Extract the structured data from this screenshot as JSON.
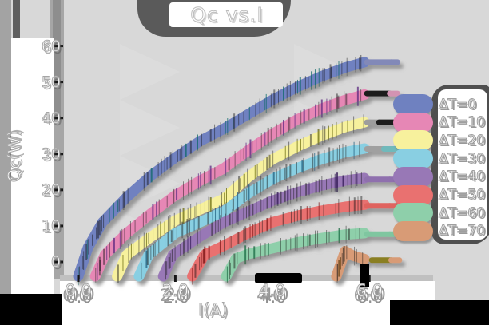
{
  "chart_data": {
    "type": "line",
    "title": "Qc vs.I",
    "xlabel": "I(A)",
    "ylabel": "Qc(W)",
    "xlim": [
      -0.4,
      6.8
    ],
    "ylim": [
      -5,
      62
    ],
    "grid": false,
    "legend_position": "right",
    "x_ticks": [
      0.0,
      2.0,
      4.0,
      6.0
    ],
    "x_tick_labels": [
      "0.0",
      "2.0",
      "4.0",
      "6.0"
    ],
    "y_ticks": [
      0,
      10,
      20,
      30,
      40,
      50,
      60
    ],
    "y_tick_labels": [
      "0",
      "10",
      "20",
      "30",
      "40",
      "50",
      "60"
    ],
    "series": [
      {
        "name": "ΔT=0",
        "color": "#6f81c0",
        "accent": "#106868",
        "points": [
          [
            0,
            -4
          ],
          [
            0.2,
            4
          ],
          [
            0.5,
            11
          ],
          [
            1,
            18
          ],
          [
            1.5,
            24
          ],
          [
            2,
            29
          ],
          [
            2.5,
            33.5
          ],
          [
            3,
            37
          ],
          [
            3.5,
            41
          ],
          [
            4,
            45
          ],
          [
            4.5,
            48.5
          ],
          [
            5,
            51.5
          ],
          [
            5.5,
            54
          ],
          [
            5.9,
            55.5
          ]
        ],
        "end_cap": {
          "value": 55.5,
          "start": 5.95,
          "mid": 6.45,
          "end": 6.58,
          "color": "#8289b8",
          "tip_color": "#8289b8"
        }
      },
      {
        "name": "ΔT=10",
        "color": "#e687b5",
        "accent": "#5c2a80",
        "points": [
          [
            0.35,
            -4
          ],
          [
            0.55,
            2
          ],
          [
            1,
            8
          ],
          [
            1.5,
            13.5
          ],
          [
            2,
            18.5
          ],
          [
            2.5,
            22.5
          ],
          [
            3,
            26
          ],
          [
            3.5,
            31
          ],
          [
            4,
            35.5
          ],
          [
            4.5,
            39.5
          ],
          [
            5,
            42.5
          ],
          [
            5.5,
            45
          ],
          [
            5.9,
            46.5
          ]
        ],
        "end_cap": {
          "value": 46.8,
          "start": 5.95,
          "mid": 6.42,
          "end": 6.58,
          "color": "#1a1a1a",
          "tip_color": "#d393b2"
        }
      },
      {
        "name": "ΔT=20",
        "color": "#f7f19d",
        "accent": "#6b6b10",
        "points": [
          [
            0.8,
            -4
          ],
          [
            1,
            2
          ],
          [
            1.5,
            7
          ],
          [
            2,
            11.5
          ],
          [
            2.5,
            14.5
          ],
          [
            3,
            17.5
          ],
          [
            3.5,
            23.5
          ],
          [
            4,
            28.5
          ],
          [
            4.5,
            32
          ],
          [
            5,
            35
          ],
          [
            5.5,
            37.5
          ],
          [
            5.9,
            38.8
          ]
        ],
        "end_cap": {
          "value": 38.8,
          "start": 5.95,
          "mid": 6.2,
          "end": 6.58,
          "color": "#9d9d9d",
          "tip_color": "#1a1a1a"
        }
      },
      {
        "name": "ΔT=30",
        "color": "#89cfe2",
        "accent": "#206080",
        "points": [
          [
            1.25,
            -4
          ],
          [
            1.45,
            2
          ],
          [
            2,
            8
          ],
          [
            2.5,
            11
          ],
          [
            3,
            14
          ],
          [
            3.5,
            19
          ],
          [
            4,
            23
          ],
          [
            4.5,
            26
          ],
          [
            5,
            28.5
          ],
          [
            5.5,
            30.5
          ],
          [
            5.9,
            31.5
          ]
        ],
        "end_cap": {
          "value": 31.4,
          "start": 5.95,
          "mid": 6.3,
          "end": 6.58,
          "color": "#a0a0a0",
          "tip_color": "#6fb9bb"
        }
      },
      {
        "name": "ΔT=40",
        "color": "#9878b6",
        "accent": "#2e1650",
        "points": [
          [
            1.75,
            -4
          ],
          [
            1.95,
            2
          ],
          [
            2.5,
            7
          ],
          [
            3,
            11
          ],
          [
            3.5,
            14
          ],
          [
            4,
            17
          ],
          [
            4.5,
            19.3
          ],
          [
            5,
            21.2
          ],
          [
            5.5,
            22.6
          ],
          [
            5.9,
            23.3
          ]
        ],
        "end_cap": {
          "value": 22.9,
          "start": 5.95,
          "mid": 6.42,
          "end": 6.58,
          "color": "#8f6fae",
          "tip_color": "#8f6fae"
        }
      },
      {
        "name": "ΔT=50",
        "color": "#e97170",
        "accent": "#801818",
        "points": [
          [
            2.35,
            -4
          ],
          [
            2.6,
            2
          ],
          [
            3,
            4.5
          ],
          [
            3.5,
            8
          ],
          [
            4,
            11
          ],
          [
            4.5,
            12.8
          ],
          [
            5,
            14.2
          ],
          [
            5.5,
            15.3
          ],
          [
            5.9,
            15.9
          ]
        ],
        "end_cap": {
          "value": 15.6,
          "start": 5.95,
          "mid": 6.42,
          "end": 6.58,
          "color": "#e0635f",
          "tip_color": "#e0635f"
        }
      },
      {
        "name": "ΔT=60",
        "color": "#8ecfaa",
        "accent": "#186a40",
        "points": [
          [
            3.05,
            -4
          ],
          [
            3.25,
            1
          ],
          [
            3.5,
            2.2
          ],
          [
            4,
            3.8
          ],
          [
            4.5,
            5.4
          ],
          [
            5,
            6.6
          ],
          [
            5.5,
            7.6
          ],
          [
            5.9,
            8
          ]
        ],
        "end_cap": {
          "value": 7.7,
          "start": 5.95,
          "mid": 6.42,
          "end": 6.58,
          "color": "#7fc6a0",
          "tip_color": "#7fc6a0"
        }
      },
      {
        "name": "ΔT=70",
        "color": "#d89b76",
        "accent": "#6a4418",
        "points": [
          [
            5.32,
            -4
          ],
          [
            5.5,
            3
          ],
          [
            5.65,
            1.8
          ],
          [
            5.9,
            0.8
          ]
        ],
        "end_cap": {
          "value": 0.5,
          "start": 6.05,
          "mid": 6.45,
          "end": 6.62,
          "color": "#8a7f22",
          "tip_color": "#d89b76"
        }
      }
    ]
  }
}
